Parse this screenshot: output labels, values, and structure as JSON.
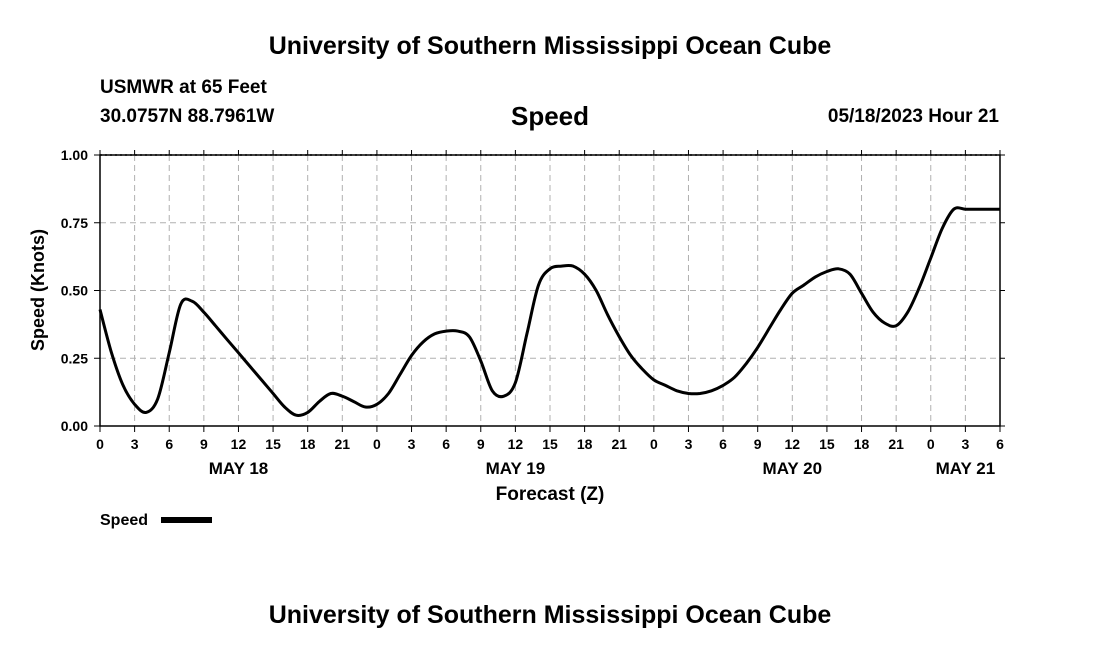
{
  "page": {
    "title": "University of Southern Mississippi Ocean Cube",
    "station": "USMWR at 65 Feet",
    "coords": "30.0757N  88.7961W",
    "datetime": "05/18/2023 Hour 21",
    "footer_title": "University of Southern Mississippi Ocean Cube"
  },
  "chart_data": {
    "type": "line",
    "title": "Speed",
    "xlabel": "Forecast (Z)",
    "ylabel": "Speed (Knots)",
    "ylim": [
      0,
      1
    ],
    "yticks": [
      "0.00",
      "0.25",
      "0.50",
      "0.75",
      "1.00"
    ],
    "xlim": [
      0,
      78
    ],
    "xtick_labels": [
      "0",
      "3",
      "6",
      "9",
      "12",
      "15",
      "18",
      "21",
      "0",
      "3",
      "6",
      "9",
      "12",
      "15",
      "18",
      "21",
      "0",
      "3",
      "6",
      "9",
      "12",
      "15",
      "18",
      "21",
      "0",
      "3",
      "6"
    ],
    "day_labels": [
      {
        "label": "MAY 18",
        "hour": 12
      },
      {
        "label": "MAY 19",
        "hour": 36
      },
      {
        "label": "MAY 20",
        "hour": 60
      },
      {
        "label": "MAY 21",
        "hour": 75
      }
    ],
    "grid": true,
    "legend": {
      "label": "Speed",
      "placement": "bottom-left"
    },
    "series": [
      {
        "name": "Speed",
        "x": [
          0,
          1,
          2,
          3,
          4,
          5,
          6,
          7,
          8,
          9,
          10,
          11,
          12,
          13,
          14,
          15,
          16,
          17,
          18,
          19,
          20,
          21,
          22,
          23,
          24,
          25,
          26,
          27,
          28,
          29,
          30,
          31,
          32,
          33,
          34,
          35,
          36,
          37,
          38,
          39,
          40,
          41,
          42,
          43,
          44,
          45,
          46,
          47,
          48,
          49,
          50,
          51,
          52,
          53,
          54,
          55,
          56,
          57,
          58,
          59,
          60,
          61,
          62,
          63,
          64,
          65,
          66,
          67,
          68,
          69,
          70,
          71,
          72,
          73,
          74,
          75,
          76,
          77,
          78
        ],
        "values": [
          0.43,
          0.27,
          0.15,
          0.08,
          0.05,
          0.1,
          0.27,
          0.45,
          0.46,
          0.42,
          0.37,
          0.32,
          0.27,
          0.22,
          0.17,
          0.12,
          0.07,
          0.04,
          0.05,
          0.09,
          0.12,
          0.11,
          0.09,
          0.07,
          0.08,
          0.12,
          0.19,
          0.26,
          0.31,
          0.34,
          0.35,
          0.35,
          0.33,
          0.24,
          0.13,
          0.11,
          0.16,
          0.34,
          0.52,
          0.58,
          0.59,
          0.59,
          0.56,
          0.5,
          0.41,
          0.33,
          0.26,
          0.21,
          0.17,
          0.15,
          0.13,
          0.12,
          0.12,
          0.13,
          0.15,
          0.18,
          0.23,
          0.29,
          0.36,
          0.43,
          0.49,
          0.52,
          0.55,
          0.57,
          0.58,
          0.56,
          0.49,
          0.42,
          0.38,
          0.37,
          0.42,
          0.51,
          0.62,
          0.73,
          0.8,
          0.8,
          0.8,
          0.8,
          0.8
        ]
      }
    ]
  }
}
